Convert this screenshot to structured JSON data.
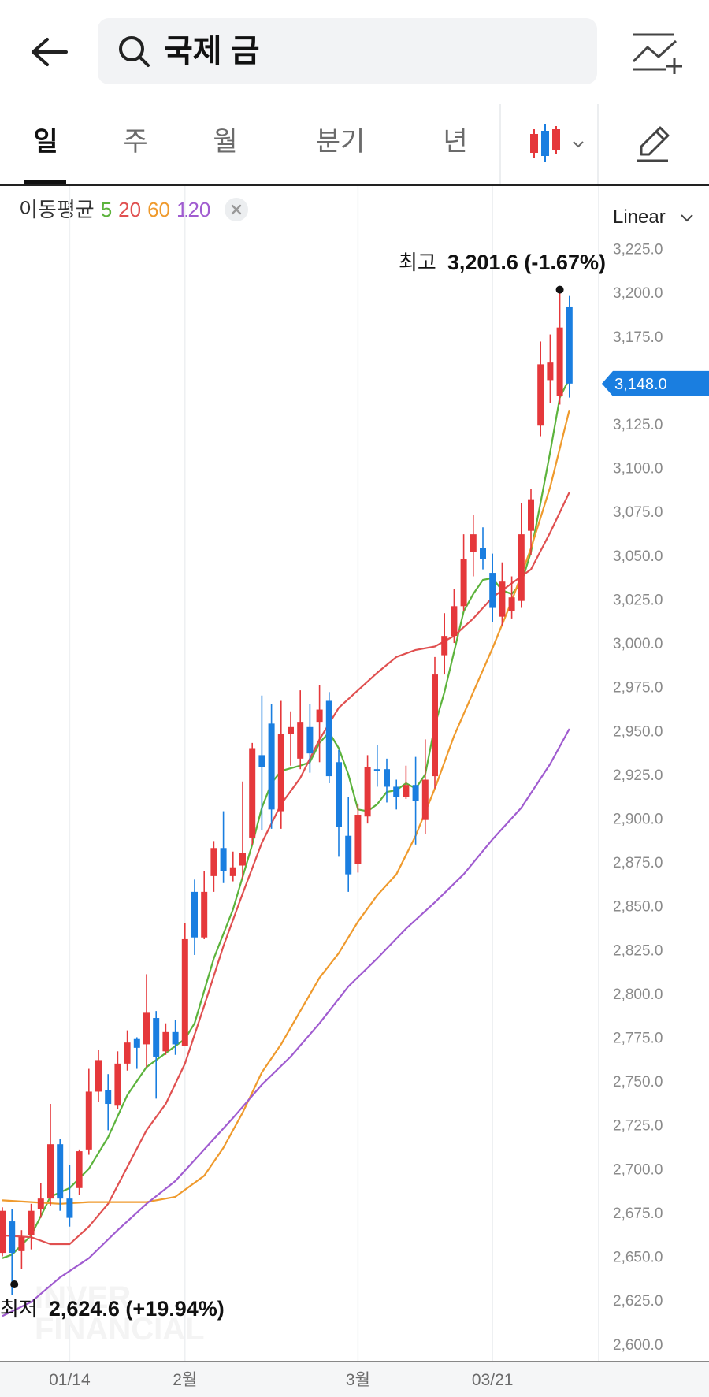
{
  "header": {
    "search_query": "국제 금"
  },
  "period_tabs": [
    {
      "label": "일",
      "active": true
    },
    {
      "label": "주",
      "active": false
    },
    {
      "label": "월",
      "active": false
    },
    {
      "label": "분기",
      "active": false
    },
    {
      "label": "년",
      "active": false
    }
  ],
  "icons": {
    "back": "arrow-left-icon",
    "search": "search-icon",
    "add_chart": "chart-add-icon",
    "candle_type": "candlestick-icon",
    "draw": "pencil-icon"
  },
  "ma_legend": {
    "label": "이동평균",
    "periods": [
      {
        "value": "5",
        "color": "#5cb33c"
      },
      {
        "value": "20",
        "color": "#e05050"
      },
      {
        "value": "60",
        "color": "#ef9a2d"
      },
      {
        "value": "120",
        "color": "#a05cd0"
      }
    ]
  },
  "scale_mode": "Linear",
  "colors": {
    "up": "#e5383b",
    "down": "#1a7ee0",
    "current_price_badge": "#1a7ee0"
  },
  "chart_data": {
    "type": "candlestick",
    "y_axis": {
      "min": 2590,
      "max": 3232,
      "ticks": [
        2600,
        2625,
        2650,
        2675,
        2700,
        2725,
        2750,
        2775,
        2800,
        2825,
        2850,
        2875,
        2900,
        2925,
        2950,
        2975,
        3000,
        3025,
        3050,
        3075,
        3100,
        3125,
        3150,
        3175,
        3200,
        3225
      ],
      "tick_labels": [
        "2,600.0",
        "2,625.0",
        "2,650.0",
        "2,675.0",
        "2,700.0",
        "2,725.0",
        "2,750.0",
        "2,775.0",
        "2,800.0",
        "2,825.0",
        "2,850.0",
        "2,875.0",
        "2,900.0",
        "2,925.0",
        "2,950.0",
        "2,975.0",
        "3,000.0",
        "3,025.0",
        "3,050.0",
        "3,075.0",
        "3,100.0",
        "3,125.0",
        "3,150.0",
        "3,175.0",
        "3,200.0",
        "3,225.0"
      ]
    },
    "x_axis_labels": [
      {
        "label": "01/14",
        "index": 7
      },
      {
        "label": "2월",
        "index": 19
      },
      {
        "label": "3월",
        "index": 37
      },
      {
        "label": "03/21",
        "index": 51
      }
    ],
    "candles": [
      [
        2652,
        2676,
        2650,
        2678
      ],
      [
        2670,
        2652,
        2628,
        2677
      ],
      [
        2653,
        2661,
        2643,
        2665
      ],
      [
        2662,
        2676,
        2654,
        2680
      ],
      [
        2677,
        2683,
        2672,
        2692
      ],
      [
        2683,
        2714,
        2679,
        2737
      ],
      [
        2714,
        2683,
        2676,
        2717
      ],
      [
        2683,
        2672,
        2667,
        2702
      ],
      [
        2689,
        2710,
        2685,
        2711
      ],
      [
        2711,
        2744,
        2708,
        2757
      ],
      [
        2744,
        2762,
        2738,
        2768
      ],
      [
        2745,
        2737,
        2722,
        2754
      ],
      [
        2736,
        2760,
        2734,
        2767
      ],
      [
        2760,
        2772,
        2756,
        2779
      ],
      [
        2774,
        2769,
        2757,
        2775
      ],
      [
        2771,
        2789,
        2758,
        2811
      ],
      [
        2786,
        2764,
        2740,
        2790
      ],
      [
        2767,
        2778,
        2765,
        2783
      ],
      [
        2778,
        2771,
        2765,
        2785
      ],
      [
        2770,
        2831,
        2770,
        2840
      ],
      [
        2858,
        2832,
        2822,
        2865
      ],
      [
        2832,
        2858,
        2831,
        2870
      ],
      [
        2867,
        2883,
        2858,
        2887
      ],
      [
        2883,
        2870,
        2863,
        2904
      ],
      [
        2867,
        2872,
        2864,
        2881
      ],
      [
        2873,
        2880,
        2865,
        2921
      ],
      [
        2889,
        2940,
        2885,
        2943
      ],
      [
        2936,
        2929,
        2893,
        2970
      ],
      [
        2954,
        2905,
        2894,
        2965
      ],
      [
        2904,
        2948,
        2894,
        2967
      ],
      [
        2948,
        2952,
        2930,
        2961
      ],
      [
        2934,
        2955,
        2928,
        2973
      ],
      [
        2952,
        2937,
        2926,
        2965
      ],
      [
        2955,
        2962,
        2932,
        2976
      ],
      [
        2967,
        2924,
        2920,
        2972
      ],
      [
        2932,
        2895,
        2878,
        2939
      ],
      [
        2890,
        2868,
        2858,
        2912
      ],
      [
        2874,
        2902,
        2869,
        2908
      ],
      [
        2901,
        2929,
        2897,
        2936
      ],
      [
        2928,
        2927,
        2918,
        2942
      ],
      [
        2928,
        2918,
        2909,
        2934
      ],
      [
        2918,
        2912,
        2905,
        2922
      ],
      [
        2912,
        2919,
        2911,
        2930
      ],
      [
        2919,
        2910,
        2885,
        2935
      ],
      [
        2899,
        2922,
        2891,
        2945
      ],
      [
        2924,
        2982,
        2917,
        2992
      ],
      [
        2993,
        3004,
        2982,
        3017
      ],
      [
        3004,
        3021,
        3000,
        3031
      ],
      [
        3021,
        3048,
        3018,
        3062
      ],
      [
        3052,
        3062,
        3038,
        3073
      ],
      [
        3054,
        3048,
        3042,
        3066
      ],
      [
        3040,
        3020,
        3012,
        3051
      ],
      [
        3015,
        3035,
        3010,
        3046
      ],
      [
        3018,
        3026,
        3014,
        3038
      ],
      [
        3024,
        3062,
        3020,
        3080
      ],
      [
        3064,
        3082,
        3050,
        3088
      ],
      [
        3124,
        3159,
        3118,
        3172
      ],
      [
        3150,
        3160,
        3137,
        3176
      ],
      [
        3141,
        3180,
        3136,
        3202
      ],
      [
        3192,
        3148,
        3140,
        3198
      ]
    ],
    "ma_lines": [
      {
        "period": 5,
        "color": "#5cb33c",
        "points": [
          [
            0,
            2649
          ],
          [
            1,
            2651
          ],
          [
            3,
            2662
          ],
          [
            5,
            2684
          ],
          [
            7,
            2689
          ],
          [
            9,
            2700
          ],
          [
            11,
            2718
          ],
          [
            13,
            2742
          ],
          [
            15,
            2758
          ],
          [
            17,
            2766
          ],
          [
            19,
            2774
          ],
          [
            20,
            2783
          ],
          [
            22,
            2820
          ],
          [
            24,
            2848
          ],
          [
            26,
            2885
          ],
          [
            27,
            2906
          ],
          [
            28,
            2920
          ],
          [
            29,
            2927
          ],
          [
            31,
            2930
          ],
          [
            32,
            2932
          ],
          [
            33,
            2943
          ],
          [
            34,
            2949
          ],
          [
            35,
            2940
          ],
          [
            36,
            2925
          ],
          [
            37,
            2905
          ],
          [
            38,
            2904
          ],
          [
            39,
            2908
          ],
          [
            40,
            2915
          ],
          [
            41,
            2916
          ],
          [
            42,
            2920
          ],
          [
            43,
            2917
          ],
          [
            44,
            2925
          ],
          [
            45,
            2953
          ],
          [
            46,
            2972
          ],
          [
            47,
            2995
          ],
          [
            48,
            3018
          ],
          [
            49,
            3028
          ],
          [
            50,
            3036
          ],
          [
            51,
            3037
          ],
          [
            52,
            3030
          ],
          [
            53,
            3028
          ],
          [
            54,
            3034
          ],
          [
            55,
            3052
          ],
          [
            56,
            3080
          ],
          [
            57,
            3109
          ],
          [
            58,
            3140
          ],
          [
            59,
            3151
          ]
        ]
      },
      {
        "period": 20,
        "color": "#e05050",
        "points": [
          [
            0,
            2662
          ],
          [
            3,
            2661
          ],
          [
            5,
            2657
          ],
          [
            7,
            2657
          ],
          [
            9,
            2667
          ],
          [
            11,
            2680
          ],
          [
            13,
            2701
          ],
          [
            15,
            2722
          ],
          [
            17,
            2737
          ],
          [
            19,
            2760
          ],
          [
            21,
            2793
          ],
          [
            23,
            2827
          ],
          [
            25,
            2857
          ],
          [
            27,
            2886
          ],
          [
            29,
            2908
          ],
          [
            31,
            2923
          ],
          [
            33,
            2945
          ],
          [
            35,
            2963
          ],
          [
            37,
            2973
          ],
          [
            39,
            2983
          ],
          [
            41,
            2992
          ],
          [
            43,
            2996
          ],
          [
            45,
            2998
          ],
          [
            47,
            3004
          ],
          [
            49,
            3014
          ],
          [
            51,
            3026
          ],
          [
            53,
            3034
          ],
          [
            55,
            3042
          ],
          [
            57,
            3063
          ],
          [
            59,
            3086
          ]
        ]
      },
      {
        "period": 60,
        "color": "#ef9a2d",
        "points": [
          [
            0,
            2682
          ],
          [
            3,
            2681
          ],
          [
            6,
            2680
          ],
          [
            9,
            2681
          ],
          [
            12,
            2681
          ],
          [
            15,
            2681
          ],
          [
            18,
            2684
          ],
          [
            21,
            2696
          ],
          [
            23,
            2712
          ],
          [
            25,
            2732
          ],
          [
            27,
            2755
          ],
          [
            29,
            2771
          ],
          [
            31,
            2790
          ],
          [
            33,
            2809
          ],
          [
            35,
            2823
          ],
          [
            37,
            2841
          ],
          [
            39,
            2856
          ],
          [
            41,
            2868
          ],
          [
            43,
            2890
          ],
          [
            45,
            2917
          ],
          [
            47,
            2947
          ],
          [
            49,
            2972
          ],
          [
            51,
            2997
          ],
          [
            53,
            3024
          ],
          [
            55,
            3054
          ],
          [
            57,
            3089
          ],
          [
            59,
            3133
          ]
        ]
      },
      {
        "period": 120,
        "color": "#a05cd0",
        "points": [
          [
            0,
            2616
          ],
          [
            3,
            2624
          ],
          [
            6,
            2638
          ],
          [
            9,
            2649
          ],
          [
            12,
            2665
          ],
          [
            15,
            2680
          ],
          [
            18,
            2693
          ],
          [
            21,
            2711
          ],
          [
            24,
            2729
          ],
          [
            27,
            2748
          ],
          [
            30,
            2764
          ],
          [
            33,
            2783
          ],
          [
            36,
            2804
          ],
          [
            39,
            2820
          ],
          [
            42,
            2837
          ],
          [
            45,
            2852
          ],
          [
            48,
            2868
          ],
          [
            51,
            2888
          ],
          [
            54,
            2906
          ],
          [
            57,
            2931
          ],
          [
            59,
            2951
          ]
        ]
      }
    ],
    "high_annotation": {
      "label": "최고",
      "value": "3,201.6 (-1.67%)",
      "index": 58,
      "price": 3201.6
    },
    "low_annotation": {
      "label": "최저",
      "value": "2,624.6 (+19.94%)",
      "index": 1,
      "price": 2624.6
    },
    "current_price": {
      "value": 3148.0,
      "label": "3,148.0"
    },
    "watermark": [
      "INVER",
      "FINANCIAL"
    ]
  }
}
